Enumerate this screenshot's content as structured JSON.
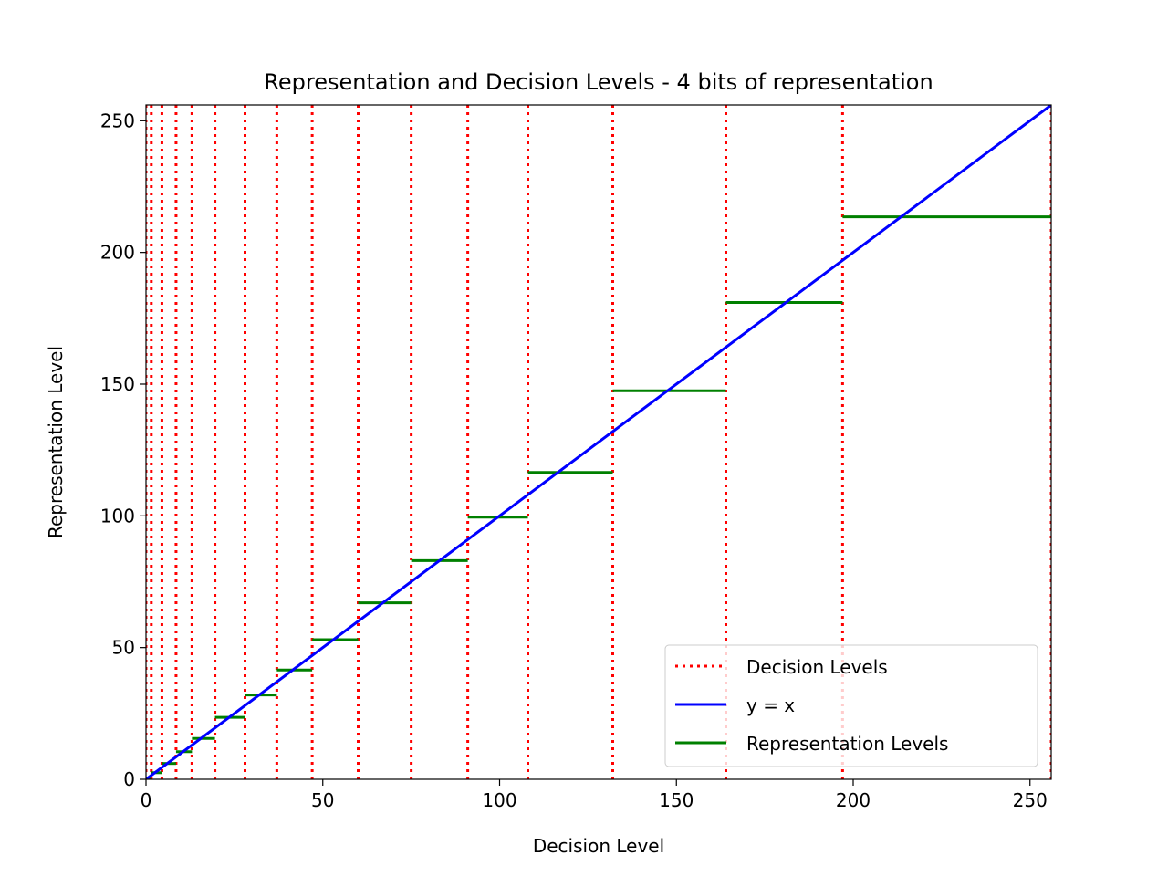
{
  "chart_data": {
    "type": "line",
    "title": "Representation and Decision Levels - 4 bits of representation",
    "xlabel": "Decision Level",
    "ylabel": "Representation Level",
    "xlim": [
      0,
      256
    ],
    "ylim": [
      0,
      256
    ],
    "grid": false,
    "legend_position": "bottom-right",
    "x_ticks": [
      0,
      50,
      100,
      150,
      200,
      250
    ],
    "y_ticks": [
      0,
      50,
      100,
      150,
      200,
      250
    ],
    "series": [
      {
        "name": "Decision Levels",
        "style": "dotted-vertical",
        "color": "#ff0000",
        "x": [
          0,
          1.5,
          4.5,
          8.5,
          13,
          19.5,
          28,
          37,
          47,
          60,
          75,
          91,
          108,
          132,
          164,
          197,
          256
        ]
      },
      {
        "name": "y = x",
        "style": "solid",
        "color": "#0000ff",
        "x": [
          0,
          256
        ],
        "y": [
          0,
          256
        ]
      },
      {
        "name": "Representation Levels",
        "style": "horizontal-steps",
        "color": "#008000",
        "segments": [
          {
            "x0": 0,
            "x1": 1.5,
            "y": 0.5
          },
          {
            "x0": 1.5,
            "x1": 4.5,
            "y": 2.5
          },
          {
            "x0": 4.5,
            "x1": 8.5,
            "y": 6
          },
          {
            "x0": 8.5,
            "x1": 13,
            "y": 10.5
          },
          {
            "x0": 13,
            "x1": 19.5,
            "y": 15.5
          },
          {
            "x0": 19.5,
            "x1": 28,
            "y": 23.5
          },
          {
            "x0": 28,
            "x1": 37,
            "y": 32
          },
          {
            "x0": 37,
            "x1": 47,
            "y": 41.5
          },
          {
            "x0": 47,
            "x1": 60,
            "y": 53
          },
          {
            "x0": 60,
            "x1": 75,
            "y": 67
          },
          {
            "x0": 75,
            "x1": 91,
            "y": 83
          },
          {
            "x0": 91,
            "x1": 108,
            "y": 99.5
          },
          {
            "x0": 108,
            "x1": 132,
            "y": 116.5
          },
          {
            "x0": 132,
            "x1": 164,
            "y": 147.5
          },
          {
            "x0": 164,
            "x1": 197,
            "y": 181
          },
          {
            "x0": 197,
            "x1": 256,
            "y": 213.5
          }
        ]
      }
    ]
  }
}
